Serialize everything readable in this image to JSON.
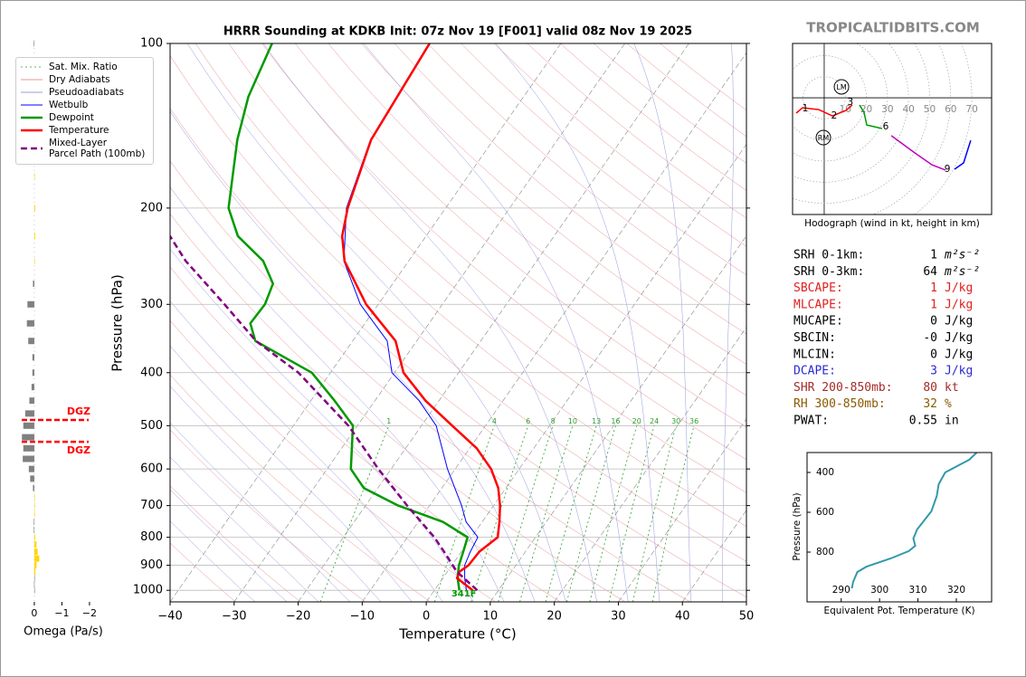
{
  "site": "TROPICALTIDBITS.COM",
  "chart_data": [
    {
      "type": "skewt",
      "title": "HRRR Sounding at KDKB Init: 07z Nov 19 [F001] valid 08z Nov 19 2025",
      "xlabel": "Temperature (°C)",
      "ylabel": "Pressure (hPa)",
      "xlim": [
        -40,
        50
      ],
      "ylim": [
        1050,
        100
      ],
      "yscale": "log",
      "grid": true,
      "xticks": [
        {
          "value": -40,
          "label": "−40"
        },
        {
          "value": -30,
          "label": "−30"
        },
        {
          "value": -20,
          "label": "−20"
        },
        {
          "value": -10,
          "label": "−10"
        },
        0,
        10,
        20,
        30,
        40,
        50
      ],
      "yticks": [
        100,
        200,
        300,
        400,
        500,
        600,
        700,
        800,
        900,
        1000
      ],
      "reference_lines": [
        {
          "name": "Sat. Mix. Ratio",
          "color": "#2ca02c",
          "style": "dotted",
          "values": [
            1,
            4,
            6,
            8,
            10,
            13,
            16,
            20,
            24,
            30,
            36
          ]
        },
        {
          "name": "Dry Adiabats",
          "color": "#e07070",
          "style": "solid"
        },
        {
          "name": "Pseudoadiabats",
          "color": "#7a7ad8",
          "style": "solid"
        }
      ],
      "series": [
        {
          "name": "Wetbulb",
          "color": "#0000ff",
          "width": 1,
          "style": "solid",
          "pressure": [
            1000,
            950,
            900,
            850,
            800,
            750,
            700,
            600,
            500,
            450,
            400,
            350,
            300,
            250,
            200,
            150,
            100
          ],
          "values": [
            5.0,
            3.4,
            2.0,
            1.4,
            1.0,
            -2.5,
            -5.0,
            -11.2,
            -17.7,
            -23.1,
            -30.4,
            -34.6,
            -42.8,
            -50.1,
            -55.5,
            -59.2,
            -60.6
          ]
        },
        {
          "name": "Dewpoint",
          "color": "#009900",
          "width": 2.5,
          "style": "solid",
          "pressure": [
            1000,
            950,
            900,
            850,
            800,
            750,
            700,
            650,
            600,
            550,
            500,
            450,
            400,
            350,
            325,
            300,
            275,
            250,
            225,
            200,
            150,
            125,
            100
          ],
          "values": [
            3.9,
            2.3,
            1.1,
            0.3,
            -0.6,
            -6.1,
            -14.9,
            -22.2,
            -26.3,
            -28.4,
            -30.7,
            -36.3,
            -42.9,
            -55.2,
            -57.9,
            -57.7,
            -58.7,
            -62.7,
            -69.4,
            -73.9,
            -80.0,
            -83.0,
            -85.1
          ]
        },
        {
          "name": "Temperature",
          "color": "#ff0000",
          "width": 2.5,
          "style": "solid",
          "pressure": [
            1000,
            950,
            925,
            900,
            850,
            800,
            750,
            700,
            650,
            600,
            550,
            500,
            450,
            400,
            350,
            300,
            250,
            225,
            200,
            150,
            100
          ],
          "values": [
            6.0,
            2.2,
            1.9,
            2.6,
            2.8,
            4.1,
            2.7,
            1.0,
            -1.2,
            -4.4,
            -8.9,
            -15.2,
            -22.1,
            -28.6,
            -33.3,
            -41.9,
            -50.0,
            -53.1,
            -55.3,
            -59.1,
            -60.5
          ]
        },
        {
          "name": "Mixed-Layer\nParcel Path (100mb)",
          "color": "#800080",
          "width": 2.5,
          "style": "dashed",
          "pressure": [
            1000,
            925,
            850,
            800,
            700,
            600,
            500,
            400,
            350,
            300,
            250,
            225
          ],
          "values": [
            6.7,
            1.5,
            -2.7,
            -5.8,
            -13.5,
            -22.0,
            -31.4,
            -45.0,
            -55.1,
            -64.0,
            -74.8,
            -80.0
          ]
        }
      ],
      "surface_label": "341F"
    },
    {
      "type": "bar",
      "orientation": "horizontal",
      "xlabel": "Omega (Pa/s)",
      "xlim": [
        0.9,
        -2.2
      ],
      "ylim": [
        1050,
        100
      ],
      "yscale": "log",
      "xticks": [
        0,
        {
          "value": -1,
          "label": "−1"
        },
        {
          "value": -2,
          "label": "−2"
        }
      ],
      "positive_color": "#808080",
      "negative_color": "#ffd700",
      "y": [
        100,
        125,
        150,
        175,
        200,
        225,
        250,
        275,
        300,
        325,
        350,
        375,
        400,
        425,
        450,
        475,
        500,
        525,
        550,
        575,
        600,
        625,
        650,
        675,
        700,
        725,
        750,
        775,
        800,
        825,
        850,
        875,
        900,
        925,
        950,
        975,
        1000
      ],
      "values": [
        0.02,
        -0.03,
        -0.02,
        -0.02,
        -0.03,
        -0.03,
        -0.02,
        0.05,
        0.25,
        0.27,
        0.22,
        0.07,
        0.07,
        0.1,
        0.18,
        0.33,
        0.4,
        0.45,
        0.4,
        0.42,
        0.2,
        0.15,
        0.05,
        -0.02,
        -0.02,
        -0.02,
        0.02,
        0.02,
        -0.03,
        -0.08,
        -0.12,
        -0.18,
        -0.08,
        -0.04,
        0,
        0.01,
        0
      ],
      "annotations": [
        {
          "text": "DGZ",
          "pressure": 488,
          "color": "#ff0000"
        },
        {
          "text": "DGZ",
          "pressure": 535,
          "color": "#ff0000"
        }
      ]
    },
    {
      "type": "hodograph",
      "xlabel": "Hodograph (wind in kt, height in km)",
      "xlim": [
        -15,
        79.4
      ],
      "ylim": [
        -55.4,
        25.8
      ],
      "xticks": [
        10,
        20,
        30,
        40,
        50,
        60,
        70
      ],
      "series": [
        {
          "color": "#ff0000",
          "u": [
            -13.3,
            -10.3,
            -2.6,
            3.9,
            10.3,
            13.3
          ],
          "v": [
            -7.3,
            -4.7,
            -5.6,
            -8.6,
            -6.0,
            -3.4
          ]
        },
        {
          "color": "#009900",
          "u": [
            16.7,
            18.9,
            20.2,
            27.5
          ],
          "v": [
            -3.4,
            -6.9,
            -12.9,
            -14.6
          ]
        },
        {
          "color": "#c000c0",
          "u": [
            31.8,
            42.5,
            51.1,
            57.5
          ],
          "v": [
            -18.0,
            -25.8,
            -31.8,
            -34.3
          ]
        },
        {
          "color": "#0000ff",
          "u": [
            61.8,
            66.1,
            69.5
          ],
          "v": [
            -33.9,
            -30.9,
            -20.2
          ]
        }
      ],
      "height_labels": [
        {
          "label": "1",
          "u": -9.0,
          "v": -5.2
        },
        {
          "label": "2",
          "u": 4.7,
          "v": -8.6
        },
        {
          "label": "3",
          "u": 12.4,
          "v": -2.1
        },
        {
          "label": "6",
          "u": 29.2,
          "v": -13.7
        },
        {
          "label": "9",
          "u": 58.4,
          "v": -33.9
        }
      ],
      "storm_motion": [
        {
          "label": "LM",
          "u": 8.2,
          "v": 5.2
        },
        {
          "label": "RM",
          "u": -0.4,
          "v": -18.9
        }
      ]
    },
    {
      "type": "line",
      "xlabel": "Equivalent Pot. Temperature (K)",
      "ylabel": "Pressure (hPa)",
      "xlim": [
        281.1,
        329.2
      ],
      "ylim": [
        1050,
        300
      ],
      "xticks": [
        290,
        300,
        310,
        320
      ],
      "yticks": [
        400,
        600,
        800
      ],
      "color": "#3399aa",
      "values": [
        292.8,
        293.1,
        294.2,
        296.6,
        302.9,
        307.6,
        309.3,
        308.8,
        309.8,
        313.5,
        314.9,
        315.4,
        317.1,
        320.6,
        323.4,
        325.3
      ],
      "y": [
        982,
        950,
        900,
        873,
        832,
        795,
        768,
        732,
        686,
        595,
        518,
        459,
        400,
        364,
        336,
        300
      ]
    }
  ],
  "stats": [
    {
      "label": "SRH 0-1km:",
      "value": "1",
      "unit": "m²s⁻²",
      "color": "#000000"
    },
    {
      "label": "SRH 0-3km:",
      "value": "64",
      "unit": "m²s⁻²",
      "color": "#000000"
    },
    {
      "label": "SBCAPE:",
      "value": "1",
      "unit": "J/kg",
      "color": "#e02020"
    },
    {
      "label": "MLCAPE:",
      "value": "1",
      "unit": "J/kg",
      "color": "#e02020"
    },
    {
      "label": "MUCAPE:",
      "value": "0",
      "unit": "J/kg",
      "color": "#000000"
    },
    {
      "label": "SBCIN:",
      "value": "-0",
      "unit": "J/kg",
      "color": "#000000"
    },
    {
      "label": "MLCIN:",
      "value": "0",
      "unit": "J/kg",
      "color": "#000000"
    },
    {
      "label": "DCAPE:",
      "value": "3",
      "unit": "J/kg",
      "color": "#2a2ad0"
    },
    {
      "label": "SHR 200-850mb:",
      "value": "80",
      "unit": "kt",
      "color": "#a52a2a"
    },
    {
      "label": "RH 300-850mb:",
      "value": "32",
      "unit": "%",
      "color": "#8b5a00"
    },
    {
      "label": "PWAT:",
      "value": "0.55",
      "unit": "in",
      "color": "#000000"
    }
  ]
}
